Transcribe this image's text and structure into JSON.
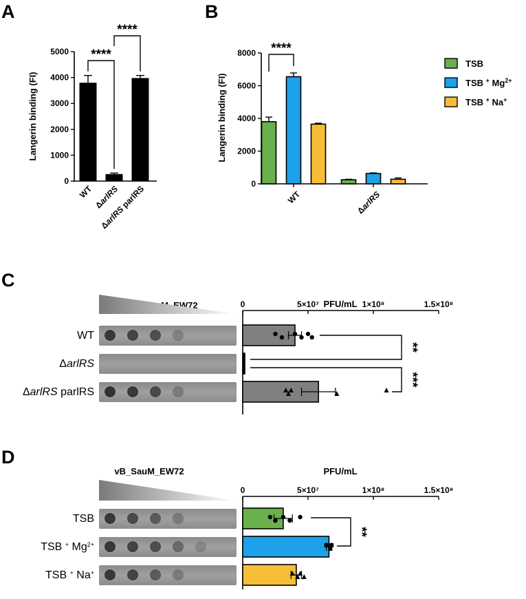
{
  "chart_data": [
    {
      "panel": "A",
      "type": "bar",
      "categories": [
        "WT",
        "ΔarlRS",
        "ΔarlRS parlRS"
      ],
      "values": [
        3800,
        270,
        3980
      ],
      "errors": [
        280,
        40,
        100
      ],
      "ylabel": "Langerin binding (FI)",
      "ylim": [
        0,
        5000
      ],
      "yticks": [
        "0",
        "1000",
        "2000",
        "3000",
        "4000",
        "5000"
      ],
      "colors": [
        "#000000",
        "#000000",
        "#000000"
      ],
      "significance": [
        {
          "from": 0,
          "to": 1,
          "label": "****"
        },
        {
          "from": 1,
          "to": 2,
          "label": "****"
        }
      ]
    },
    {
      "panel": "B",
      "type": "bar",
      "categories": [
        "WT",
        "ΔarlRS"
      ],
      "series": [
        {
          "name": "TSB",
          "color": "#6ab04c",
          "values": [
            3800,
            250
          ],
          "errors": [
            280,
            30
          ]
        },
        {
          "name": "TSB + Mg2+",
          "color": "#1da1e8",
          "values": [
            6550,
            630
          ],
          "errors": [
            230,
            40
          ]
        },
        {
          "name": "TSB + Na+",
          "color": "#f6bd38",
          "values": [
            3650,
            280
          ],
          "errors": [
            60,
            80
          ]
        }
      ],
      "ylabel": "Langerin binding (FI)",
      "ylim": [
        0,
        8000
      ],
      "yticks": [
        "0",
        "2000",
        "4000",
        "6000",
        "8000"
      ],
      "legend": "right",
      "significance": [
        {
          "label": "****"
        }
      ]
    },
    {
      "panel": "C",
      "type": "bar",
      "orientation": "horizontal",
      "title": "PFU/mL",
      "phage": "vB_SauM_EW72",
      "categories": [
        "WT",
        "ΔarlRS",
        "ΔarlRS parlRS"
      ],
      "values": [
        40000000,
        1000000,
        58000000
      ],
      "errors": [
        5000000,
        0,
        13000000
      ],
      "points": [
        [
          25000000,
          30000000,
          40000000,
          45000000,
          50000000,
          53000000
        ],
        [],
        [
          33000000,
          35000000,
          37000000,
          72000000,
          110000000
        ]
      ],
      "marker": [
        "circle",
        "circle",
        "triangle"
      ],
      "xlim": [
        0,
        150000000
      ],
      "xticks": [
        "0",
        "5×10⁷",
        "1×10⁸",
        "1.5×10⁸"
      ],
      "colors": [
        "#808080",
        "#000000",
        "#808080"
      ],
      "significance": [
        {
          "from": 0,
          "to": 1,
          "label": "**"
        },
        {
          "from": 1,
          "to": 2,
          "label": "***"
        }
      ]
    },
    {
      "panel": "D",
      "type": "bar",
      "orientation": "horizontal",
      "title": "PFU/mL",
      "phage": "vB_SauM_EW72",
      "categories": [
        "TSB",
        "TSB + Mg2+",
        "TSB + Na+"
      ],
      "values": [
        31000000,
        66000000,
        41000000
      ],
      "errors": [
        7000000,
        2000000,
        4000000
      ],
      "points": [
        [
          21000000,
          25000000,
          31000000,
          36000000,
          44000000
        ],
        [
          64000000,
          67000000,
          68000000
        ],
        [
          38000000,
          42000000,
          44000000,
          47000000
        ]
      ],
      "marker": [
        "circle",
        "square",
        "triangle"
      ],
      "xlim": [
        0,
        150000000
      ],
      "xticks": [
        "0",
        "5×10⁷",
        "1×10⁸",
        "1.5×10⁸"
      ],
      "colors": [
        "#6ab04c",
        "#1da1e8",
        "#f6bd38"
      ],
      "significance": [
        {
          "from": 0,
          "to": 1,
          "label": "**"
        }
      ]
    }
  ]
}
